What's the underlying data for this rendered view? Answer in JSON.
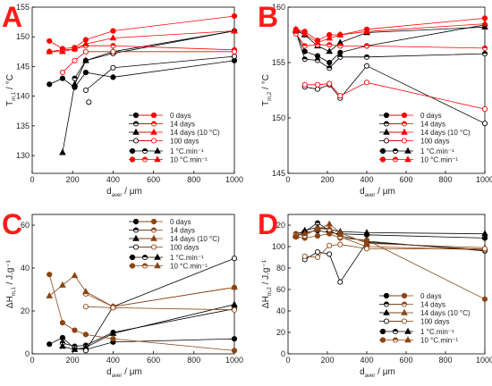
{
  "chart_data": [
    {
      "panel_label": "A",
      "type": "line",
      "ylabel_main": "T",
      "ylabel_sub": "m,1",
      "ylabel_unit": "°C",
      "xlabel_main": "d",
      "xlabel_sub": "aver",
      "xlabel_unit": "μm",
      "xlim": [
        0,
        1000
      ],
      "ylim": [
        127,
        155
      ],
      "xticks": [
        0,
        200,
        400,
        600,
        800,
        1000
      ],
      "yticks": [
        130,
        135,
        140,
        145,
        150,
        155
      ],
      "legend": {
        "position": "bottom-right",
        "rows": [
          "0 days",
          "14 days",
          "14 days (10 °C)",
          "100 days"
        ],
        "rate_rows": [
          "1 °C.min⁻¹",
          "10 °C.min⁻¹"
        ]
      },
      "series": [
        {
          "marker": "filled",
          "color": "#000000",
          "points": [
            [
              85,
              142
            ],
            [
              150,
              143
            ],
            [
              210,
              141.5
            ],
            [
              265,
              144
            ],
            [
              400,
              143.2
            ],
            [
              1000,
              146
            ]
          ]
        },
        {
          "marker": "half",
          "color": "#000000",
          "points": [
            [
              210,
              143
            ],
            [
              265,
              146
            ],
            [
              400,
              147.2
            ],
            [
              1000,
              151
            ]
          ]
        },
        {
          "marker": "triangle",
          "color": "#000000",
          "points": [
            [
              150,
              130.5
            ],
            [
              210,
              142
            ],
            [
              265,
              146
            ],
            [
              400,
              147.5
            ],
            [
              1000,
              151
            ]
          ]
        },
        {
          "marker": "open",
          "color": "#000000",
          "points": [
            [
              265,
              141
            ],
            [
              400,
              144.8
            ],
            [
              1000,
              146.7
            ]
          ]
        },
        {
          "marker": "filled",
          "color": "#ff0000",
          "points": [
            [
              85,
              149.3
            ],
            [
              150,
              148
            ],
            [
              210,
              148.2
            ],
            [
              265,
              149.5
            ],
            [
              400,
              151
            ],
            [
              1000,
              153.5
            ]
          ]
        },
        {
          "marker": "half",
          "color": "#ff0000",
          "points": [
            [
              85,
              147.5
            ],
            [
              150,
              147.8
            ],
            [
              210,
              147.9
            ],
            [
              265,
              148.5
            ],
            [
              400,
              148.5
            ],
            [
              1000,
              147.8
            ]
          ]
        },
        {
          "marker": "triangle",
          "color": "#ff0000",
          "points": [
            [
              85,
              147.5
            ],
            [
              150,
              147.5
            ],
            [
              210,
              148
            ],
            [
              265,
              148.8
            ],
            [
              400,
              149.8
            ],
            [
              1000,
              151
            ]
          ]
        },
        {
          "marker": "open",
          "color": "#ff0000",
          "points": [
            [
              150,
              144
            ],
            [
              210,
              146
            ],
            [
              265,
              147.5
            ],
            [
              400,
              147.5
            ],
            [
              1000,
              147.5
            ]
          ]
        }
      ],
      "extra_points": [
        {
          "marker": "open",
          "color": "#000000",
          "points": [
            [
              280,
              139
            ]
          ]
        }
      ]
    },
    {
      "panel_label": "B",
      "type": "line",
      "ylabel_main": "T",
      "ylabel_sub": "m,2",
      "ylabel_unit": "°C",
      "xlabel_main": "d",
      "xlabel_sub": "aver",
      "xlabel_unit": "μm",
      "xlim": [
        0,
        1000
      ],
      "ylim": [
        145,
        160
      ],
      "xticks": [
        0,
        200,
        400,
        600,
        800,
        1000
      ],
      "yticks": [
        145,
        150,
        155,
        160
      ],
      "legend": {
        "position": "bottom-right",
        "rows": [
          "0 days",
          "14 days",
          "14 days (10 °C)",
          "100 days"
        ],
        "rate_rows": [
          "1 °C.min⁻¹",
          "10 °C.min⁻¹"
        ]
      },
      "series": [
        {
          "marker": "filled",
          "color": "#000000",
          "points": [
            [
              40,
              157.7
            ],
            [
              85,
              156
            ],
            [
              150,
              155.6
            ],
            [
              210,
              155
            ],
            [
              265,
              155.9
            ],
            [
              400,
              156.5
            ],
            [
              1000,
              158.4
            ]
          ]
        },
        {
          "marker": "half",
          "color": "#000000",
          "points": [
            [
              40,
              157.8
            ],
            [
              85,
              155.3
            ],
            [
              150,
              155.2
            ],
            [
              210,
              154.5
            ],
            [
              265,
              155.5
            ],
            [
              400,
              155.5
            ],
            [
              1000,
              155.8
            ]
          ]
        },
        {
          "marker": "triangle",
          "color": "#000000",
          "points": [
            [
              40,
              157.9
            ],
            [
              85,
              157.5
            ],
            [
              150,
              156.5
            ],
            [
              210,
              156
            ],
            [
              265,
              156.8
            ],
            [
              400,
              157.7
            ],
            [
              1000,
              158.2
            ]
          ]
        },
        {
          "marker": "open",
          "color": "#000000",
          "points": [
            [
              85,
              152.8
            ],
            [
              150,
              152.6
            ],
            [
              210,
              153
            ],
            [
              265,
              151.8
            ],
            [
              400,
              154.7
            ],
            [
              1000,
              149.5
            ]
          ]
        },
        {
          "marker": "filled",
          "color": "#ff0000",
          "points": [
            [
              40,
              158
            ],
            [
              85,
              157.8
            ],
            [
              150,
              157
            ],
            [
              210,
              157.5
            ],
            [
              265,
              157.5
            ],
            [
              400,
              158
            ],
            [
              1000,
              159
            ]
          ]
        },
        {
          "marker": "half",
          "color": "#ff0000",
          "points": [
            [
              40,
              157.6
            ],
            [
              85,
              156.5
            ],
            [
              150,
              156.6
            ],
            [
              210,
              156.6
            ],
            [
              265,
              156.5
            ],
            [
              400,
              156.5
            ],
            [
              1000,
              156.3
            ]
          ]
        },
        {
          "marker": "triangle",
          "color": "#ff0000",
          "points": [
            [
              40,
              158
            ],
            [
              85,
              157.6
            ],
            [
              150,
              156.8
            ],
            [
              210,
              157.2
            ],
            [
              265,
              157.5
            ],
            [
              400,
              157.8
            ],
            [
              1000,
              158.5
            ]
          ]
        },
        {
          "marker": "open",
          "color": "#ff0000",
          "points": [
            [
              85,
              153
            ],
            [
              150,
              153
            ],
            [
              210,
              153.1
            ],
            [
              265,
              152
            ],
            [
              400,
              153.2
            ],
            [
              1000,
              150.8
            ]
          ]
        }
      ]
    },
    {
      "panel_label": "C",
      "type": "line",
      "ylabel_main": "ΔH",
      "ylabel_sub": "m,1",
      "ylabel_unit": "J.g⁻¹",
      "xlabel_main": "d",
      "xlabel_sub": "aver",
      "xlabel_unit": "μm",
      "xlim": [
        0,
        1000
      ],
      "ylim": [
        0,
        65
      ],
      "xticks": [
        0,
        200,
        400,
        600,
        800,
        1000
      ],
      "yticks": [
        0,
        20,
        40,
        60
      ],
      "legend": {
        "position": "top-right",
        "rows": [
          "0 days",
          "14 days",
          "14 days (10 °C)",
          "100 days"
        ],
        "rate_rows": [
          "1 °C.min⁻¹",
          "10 °C.min⁻¹"
        ]
      },
      "series": [
        {
          "marker": "filled",
          "color": "#000000",
          "points": [
            [
              85,
              4.5
            ],
            [
              150,
              7.5
            ],
            [
              210,
              2.5
            ],
            [
              265,
              2
            ],
            [
              400,
              5.5
            ],
            [
              1000,
              7
            ]
          ]
        },
        {
          "marker": "half",
          "color": "#000000",
          "points": [
            [
              150,
              5
            ],
            [
              210,
              3.5
            ],
            [
              265,
              4
            ],
            [
              400,
              10
            ],
            [
              1000,
              21
            ]
          ]
        },
        {
          "marker": "triangle",
          "color": "#000000",
          "points": [
            [
              150,
              3.5
            ],
            [
              210,
              2
            ],
            [
              265,
              3
            ],
            [
              400,
              9.5
            ],
            [
              1000,
              23
            ]
          ]
        },
        {
          "marker": "open",
          "color": "#000000",
          "points": [
            [
              265,
              1.5
            ],
            [
              400,
              22
            ],
            [
              1000,
              44.5
            ]
          ]
        },
        {
          "marker": "filled",
          "color": "#8b4513",
          "points": [
            [
              85,
              37
            ],
            [
              150,
              14.5
            ],
            [
              210,
              11
            ],
            [
              265,
              9
            ],
            [
              400,
              7
            ],
            [
              1000,
              1.5
            ]
          ]
        },
        {
          "marker": "half",
          "color": "#8b4513",
          "points": [
            [
              265,
              28
            ],
            [
              400,
              22
            ],
            [
              1000,
              31
            ]
          ]
        },
        {
          "marker": "triangle",
          "color": "#8b4513",
          "points": [
            [
              85,
              27
            ],
            [
              150,
              32
            ],
            [
              210,
              36.5
            ],
            [
              265,
              29
            ],
            [
              400,
              22
            ],
            [
              1000,
              31
            ]
          ]
        },
        {
          "marker": "open",
          "color": "#8b4513",
          "points": [
            [
              265,
              22
            ],
            [
              400,
              21.5
            ],
            [
              1000,
              20.5
            ]
          ]
        }
      ]
    },
    {
      "panel_label": "D",
      "type": "line",
      "ylabel_main": "ΔH",
      "ylabel_sub": "m,2",
      "ylabel_unit": "J.g⁻¹",
      "xlabel_main": "d",
      "xlabel_sub": "aver",
      "xlabel_unit": "μm",
      "xlim": [
        0,
        1000
      ],
      "ylim": [
        0,
        130
      ],
      "xticks": [
        0,
        200,
        400,
        600,
        800,
        1000
      ],
      "yticks": [
        0,
        20,
        40,
        60,
        80,
        100,
        120
      ],
      "legend": {
        "position": "bottom-right",
        "rows": [
          "0 days",
          "14 days",
          "14 days (10 °C)",
          "100 days"
        ],
        "rate_rows": [
          "1 °C.min⁻¹",
          "10 °C.min⁻¹"
        ]
      },
      "series": [
        {
          "marker": "filled",
          "color": "#000000",
          "points": [
            [
              40,
              110
            ],
            [
              85,
              113
            ],
            [
              150,
              115
            ],
            [
              210,
              113
            ],
            [
              265,
              112
            ],
            [
              400,
              111
            ],
            [
              1000,
              108
            ]
          ]
        },
        {
          "marker": "half",
          "color": "#000000",
          "points": [
            [
              40,
              112
            ],
            [
              85,
              114
            ],
            [
              150,
              122
            ],
            [
              210,
              115
            ],
            [
              265,
              110
            ],
            [
              400,
              105
            ],
            [
              1000,
              96
            ]
          ]
        },
        {
          "marker": "triangle",
          "color": "#000000",
          "points": [
            [
              40,
              111
            ],
            [
              85,
              115
            ],
            [
              150,
              118
            ],
            [
              210,
              116
            ],
            [
              265,
              114
            ],
            [
              400,
              113
            ],
            [
              1000,
              112
            ]
          ]
        },
        {
          "marker": "open",
          "color": "#000000",
          "points": [
            [
              85,
              88
            ],
            [
              150,
              95
            ],
            [
              210,
              93
            ],
            [
              265,
              67
            ],
            [
              400,
              104
            ],
            [
              1000,
              97
            ]
          ]
        },
        {
          "marker": "filled",
          "color": "#8b4513",
          "points": [
            [
              40,
              109
            ],
            [
              85,
              108
            ],
            [
              150,
              110
            ],
            [
              210,
              112
            ],
            [
              265,
              108
            ],
            [
              400,
              106
            ],
            [
              1000,
              51
            ]
          ]
        },
        {
          "marker": "half",
          "color": "#8b4513",
          "points": [
            [
              40,
              112
            ],
            [
              85,
              110
            ],
            [
              150,
              117
            ],
            [
              210,
              116
            ],
            [
              265,
              109
            ],
            [
              400,
              100
            ],
            [
              1000,
              97
            ]
          ]
        },
        {
          "marker": "triangle",
          "color": "#8b4513",
          "points": [
            [
              40,
              110
            ],
            [
              85,
              112
            ],
            [
              150,
              116
            ],
            [
              210,
              121
            ],
            [
              265,
              113
            ],
            [
              400,
              103
            ],
            [
              1000,
              99
            ]
          ]
        },
        {
          "marker": "open",
          "color": "#8b4513",
          "points": [
            [
              85,
              91
            ],
            [
              150,
              90
            ],
            [
              210,
              101
            ],
            [
              265,
              102
            ],
            [
              400,
              98
            ],
            [
              1000,
              98
            ]
          ]
        }
      ]
    }
  ]
}
